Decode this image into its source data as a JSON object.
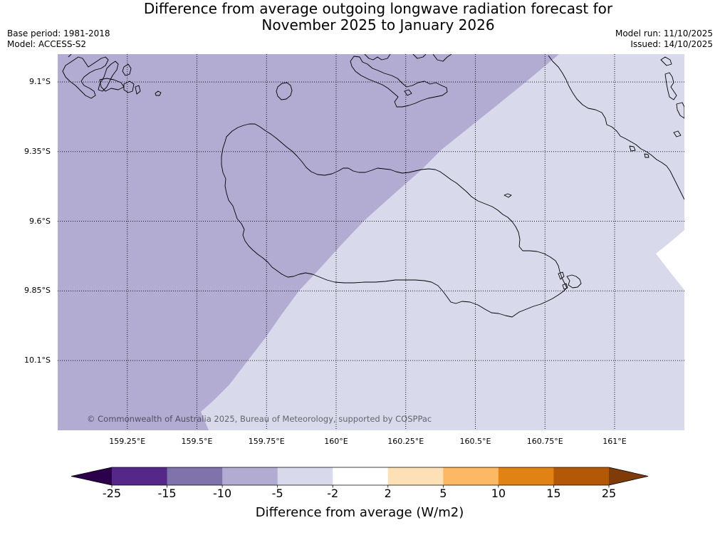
{
  "title": {
    "line1": "Difference from average outgoing longwave radiation forecast for",
    "line2": "November 2025 to January 2026"
  },
  "info": {
    "base_period": "Base period: 1981-2018",
    "model": "Model: ACCESS-S2",
    "model_run": "Model run: 11/10/2025",
    "issued": "Issued: 14/10/2025"
  },
  "map": {
    "latitude_ticks": [
      {
        "value": -9.1,
        "label": "9.1°S"
      },
      {
        "value": -9.35,
        "label": "9.35°S"
      },
      {
        "value": -9.6,
        "label": "9.6°S"
      },
      {
        "value": -9.85,
        "label": "9.85°S"
      },
      {
        "value": -10.1,
        "label": "10.1°S"
      }
    ],
    "longitude_ticks": [
      {
        "value": 159.25,
        "label": "159.25°E"
      },
      {
        "value": 159.5,
        "label": "159.5°E"
      },
      {
        "value": 159.75,
        "label": "159.75°E"
      },
      {
        "value": 160.0,
        "label": "160°E"
      },
      {
        "value": 160.25,
        "label": "160.25°E"
      },
      {
        "value": 160.5,
        "label": "160.5°E"
      },
      {
        "value": 160.75,
        "label": "160.75°E"
      },
      {
        "value": 161.0,
        "label": "161°E"
      }
    ],
    "copyright": "© Commonwealth of Australia 2025, Bureau of Meteorology, supported by COSPPac"
  },
  "colorbar": {
    "label": "Difference from average (W/m2)",
    "ticks": [
      "-25",
      "-15",
      "-10",
      "-5",
      "-2",
      "2",
      "5",
      "10",
      "15",
      "25"
    ],
    "under_color": "#2d004b",
    "over_color": "#7f3b08",
    "bin_colors": [
      "#542788",
      "#8073ac",
      "#b2abd2",
      "#d8daeb",
      "#ffffff",
      "#fee0b6",
      "#fdb863",
      "#e08214",
      "#b35806"
    ]
  },
  "colors": {
    "gridline": "#000000",
    "coastline": "#000000"
  }
}
